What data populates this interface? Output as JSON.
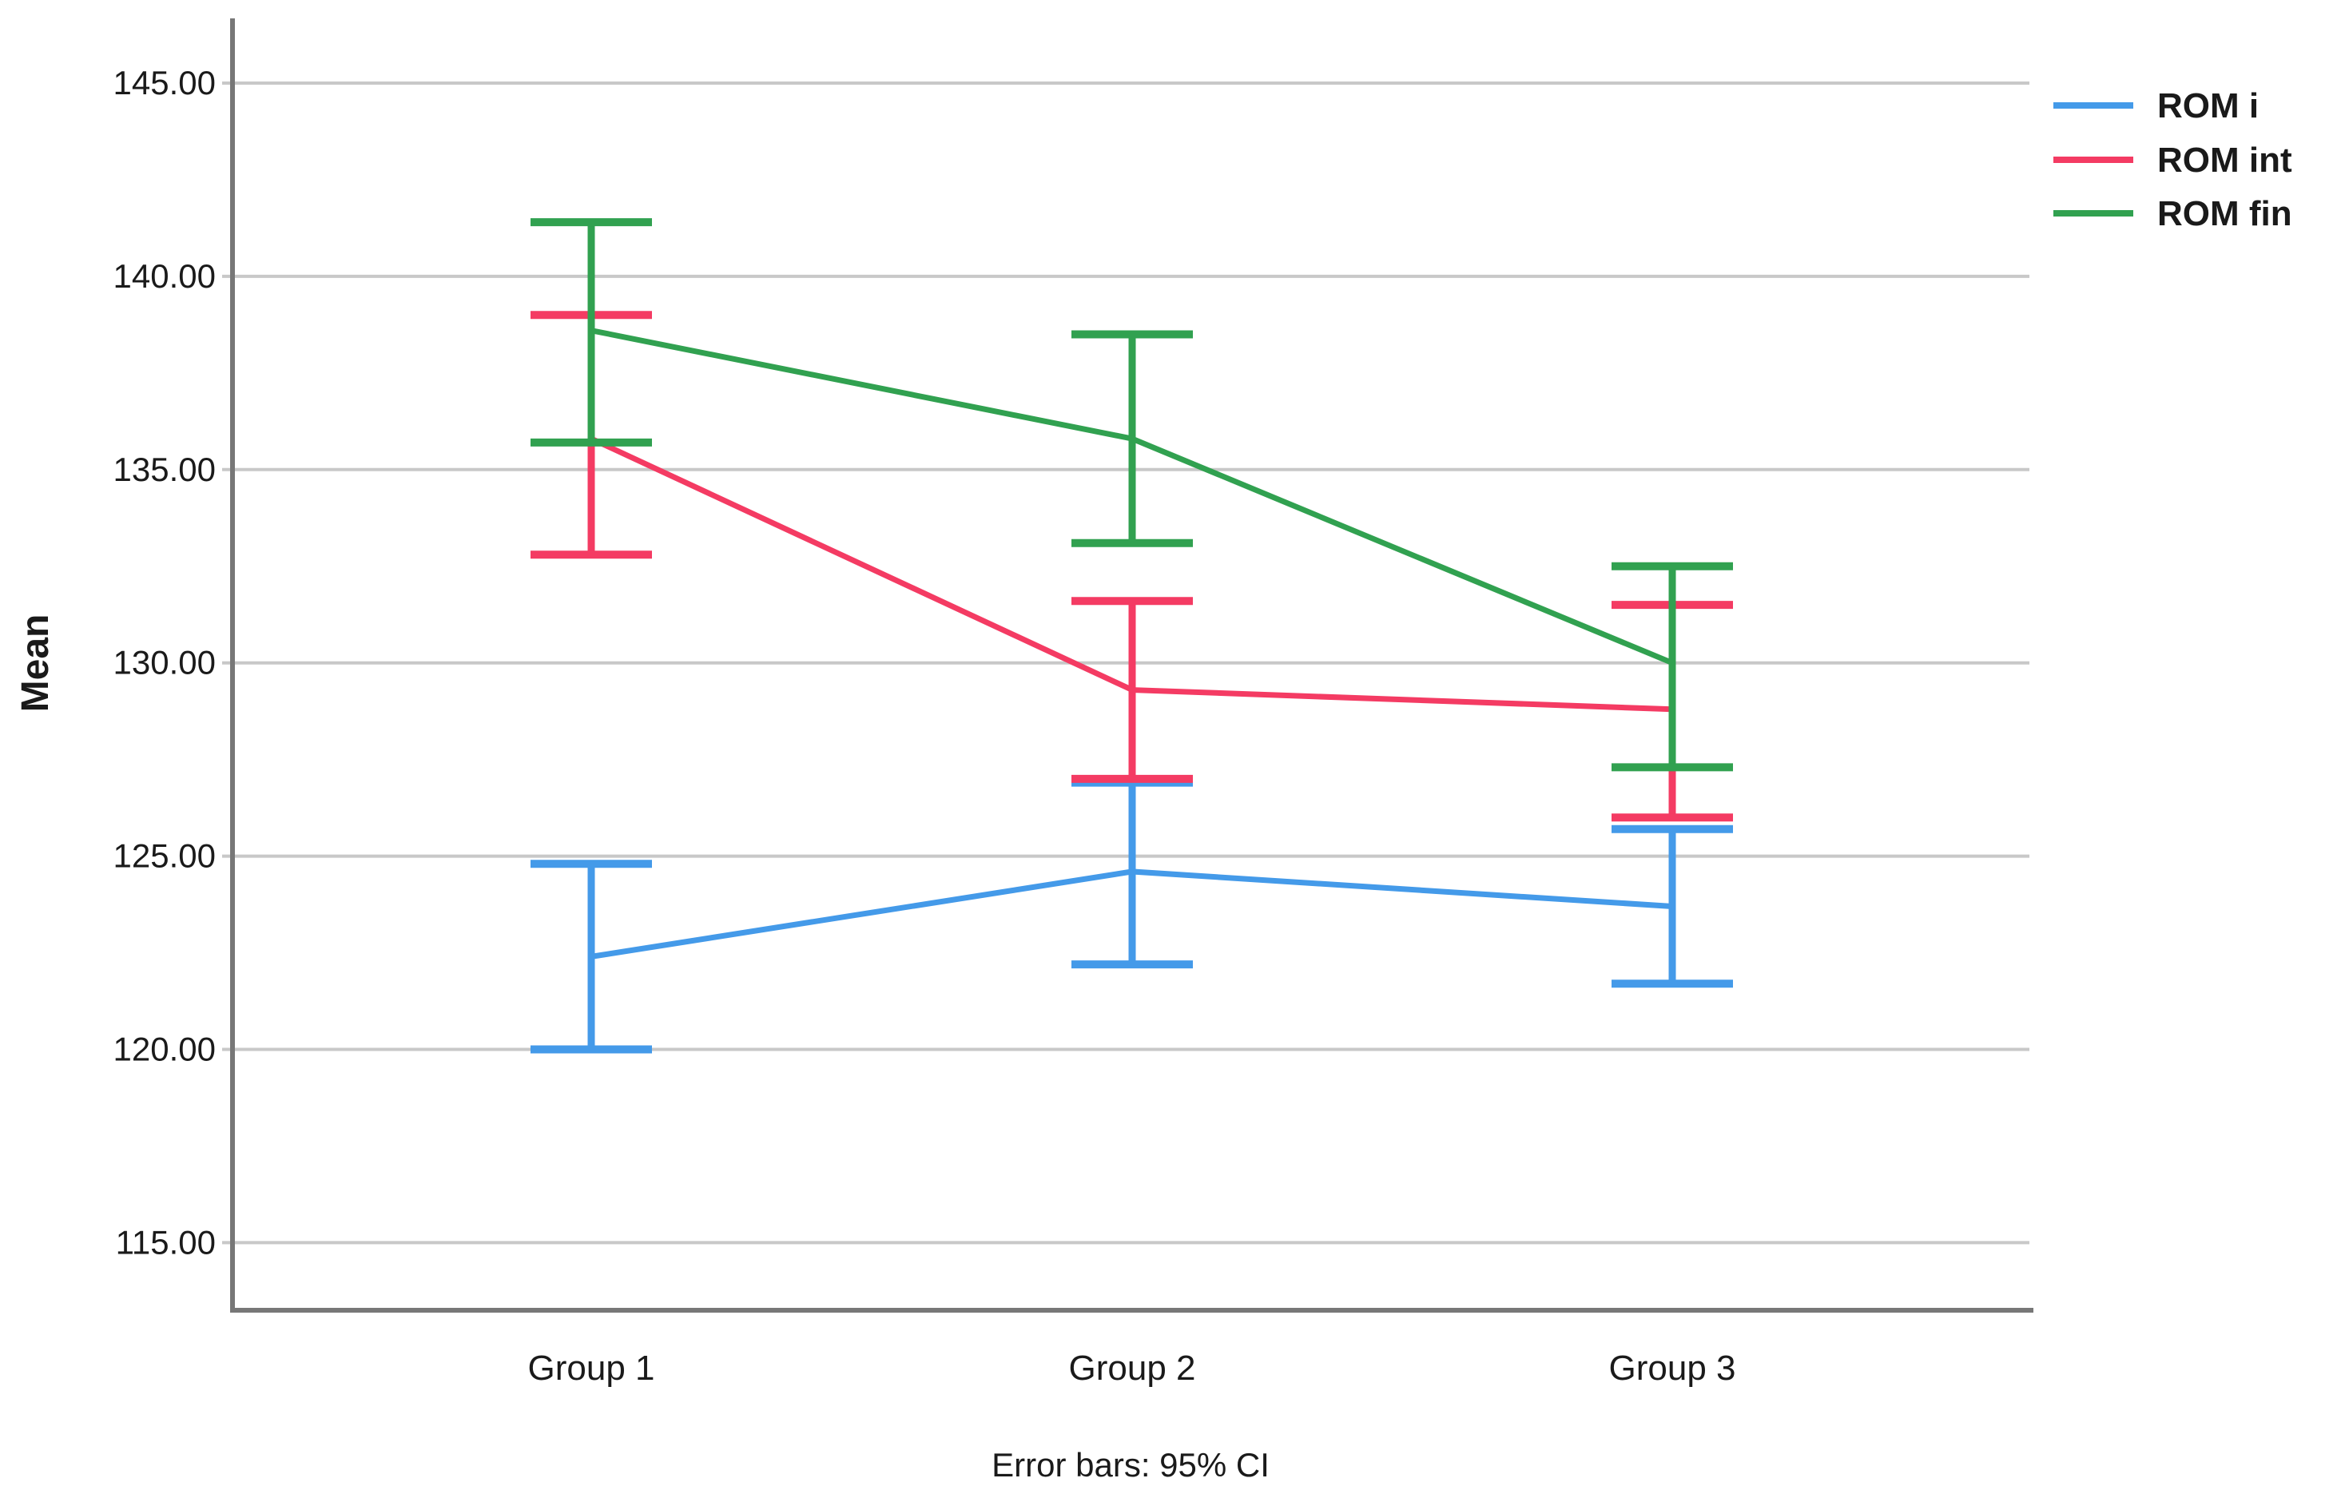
{
  "chart_data": {
    "type": "line",
    "title": "",
    "xlabel": "",
    "ylabel": "Mean",
    "caption": "Error bars: 95% CI",
    "categories": [
      "Group 1",
      "Group 2",
      "Group 3"
    ],
    "series": [
      {
        "name": "ROM i",
        "color": "#449AE9",
        "means": [
          122.4,
          124.6,
          123.7
        ],
        "ci_low": [
          120.0,
          122.2,
          121.7
        ],
        "ci_high": [
          124.8,
          126.9,
          125.7
        ]
      },
      {
        "name": "ROM int",
        "color": "#F43B63",
        "means": [
          135.8,
          129.3,
          128.8
        ],
        "ci_low": [
          132.8,
          127.0,
          126.0
        ],
        "ci_high": [
          139.0,
          131.6,
          131.5
        ]
      },
      {
        "name": "ROM fin",
        "color": "#31A150",
        "means": [
          138.6,
          135.8,
          130.0
        ],
        "ci_low": [
          135.7,
          133.1,
          127.3
        ],
        "ci_high": [
          141.4,
          138.5,
          132.5
        ]
      }
    ],
    "y_ticks": [
      {
        "value": 145,
        "label": "145.00"
      },
      {
        "value": 140,
        "label": "140.00"
      },
      {
        "value": 135,
        "label": "135.00"
      },
      {
        "value": 130,
        "label": "130.00"
      },
      {
        "value": 125,
        "label": "125.00"
      },
      {
        "value": 120,
        "label": "120.00"
      },
      {
        "value": 115,
        "label": "115.00"
      }
    ],
    "ylim": [
      113.2,
      146.7
    ],
    "grid": true,
    "legend_position": "top-right",
    "error_bar_style": "capped-I-beam"
  },
  "colors": {
    "grid": "#c8c8c8",
    "axis": "#777777",
    "text": "#1a1a1a",
    "background": "#ffffff"
  }
}
